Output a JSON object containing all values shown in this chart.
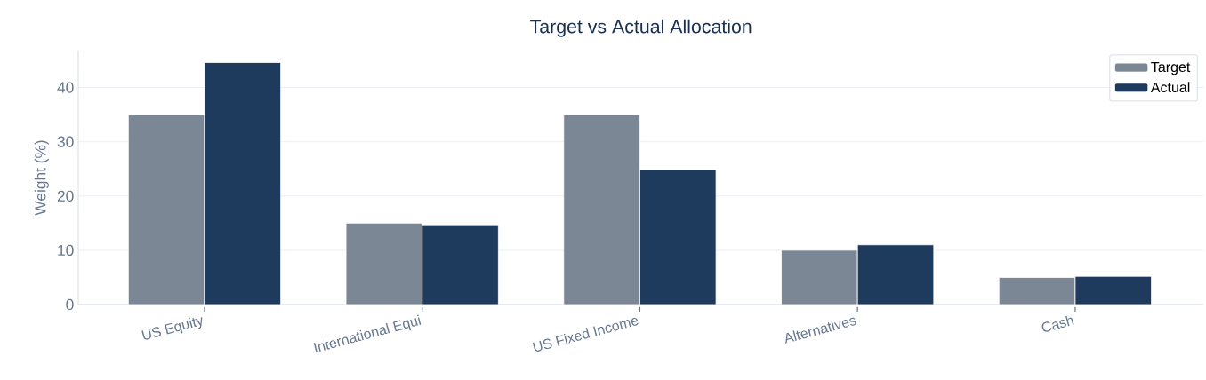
{
  "chart_data": {
    "type": "bar",
    "title": "Target vs Actual Allocation",
    "ylabel": "Weight (%)",
    "categories": [
      "US Equity",
      "International Equi",
      "US Fixed Income",
      "Alternatives",
      "Cash"
    ],
    "series": [
      {
        "name": "Target",
        "color": "#7b8794",
        "values": [
          35,
          15,
          35,
          10,
          5
        ]
      },
      {
        "name": "Actual",
        "color": "#1e3a5c",
        "values": [
          44.6,
          14.7,
          24.8,
          11,
          5.2
        ]
      }
    ],
    "ylim": [
      0,
      46.8
    ],
    "yticks": [
      0,
      10,
      20,
      30,
      40
    ],
    "grid": "y",
    "legend": "top right"
  }
}
